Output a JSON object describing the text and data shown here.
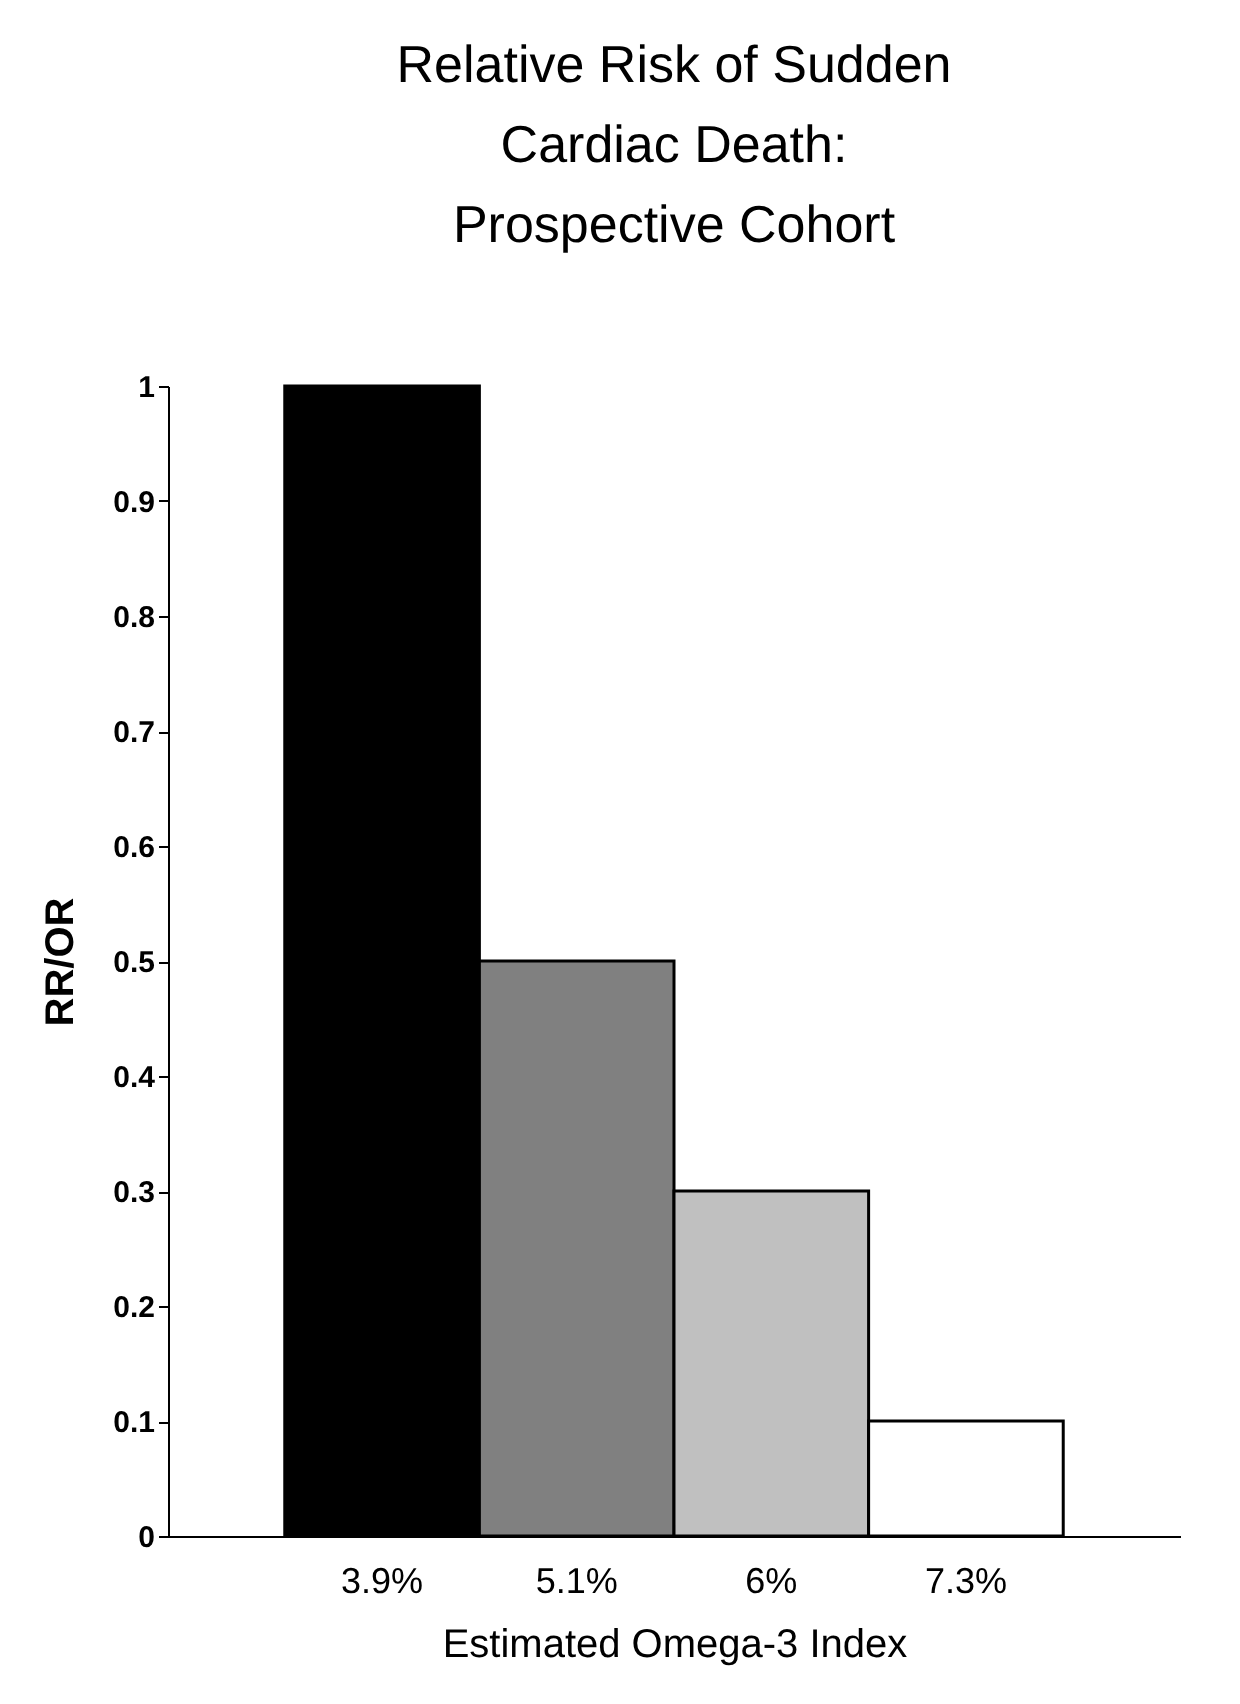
{
  "chart_data": {
    "type": "bar",
    "title": "Relative Risk of Sudden Cardiac Death: Prospective Cohort",
    "xlabel": "Estimated Omega-3  Index",
    "ylabel": "RR/OR",
    "categories": [
      "3.9%",
      "5.1%",
      "6%",
      "7.3%"
    ],
    "values": [
      1,
      0.5,
      0.3,
      0.1
    ],
    "colors": [
      "#000000",
      "#808080",
      "#c0c0c0",
      "#ffffff"
    ],
    "ylim": [
      0,
      1
    ],
    "yticks": [
      0,
      0.1,
      0.2,
      0.3,
      0.4,
      0.5,
      0.6,
      0.7,
      0.8,
      0.9,
      1
    ],
    "grid": false,
    "legend": false
  }
}
